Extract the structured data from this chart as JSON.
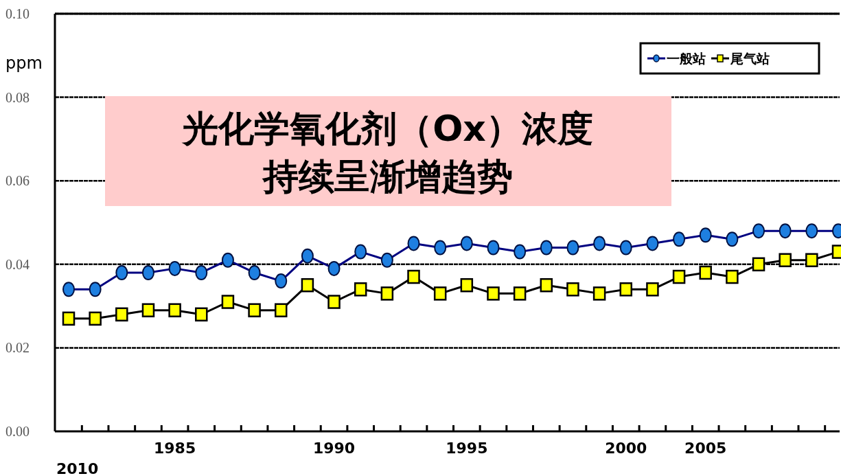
{
  "chart_data": {
    "type": "line",
    "title": "光化学氧化剂（Ox）浓度",
    "subtitle": "持续呈渐增趋势",
    "ylabel": "ppm",
    "categories": [
      null,
      null,
      null,
      null,
      "1985",
      null,
      null,
      null,
      null,
      null,
      "1990",
      null,
      null,
      null,
      null,
      "1995",
      null,
      null,
      null,
      null,
      null,
      "2000",
      null,
      null,
      "2005",
      null,
      null,
      null,
      null,
      null
    ],
    "series": [
      {
        "name": "一般站",
        "color": "#1e7fe0",
        "marker": "circle",
        "values": [
          0.034,
          0.034,
          0.038,
          0.038,
          0.039,
          0.038,
          0.041,
          0.038,
          0.036,
          0.042,
          0.039,
          0.043,
          0.041,
          0.045,
          0.044,
          0.045,
          0.044,
          0.043,
          0.044,
          0.044,
          0.045,
          0.044,
          0.045,
          0.046,
          0.047,
          0.046,
          0.048,
          0.048,
          0.048,
          0.048
        ]
      },
      {
        "name": "尾气站",
        "color": "#ffff00",
        "marker": "square",
        "values": [
          0.027,
          0.027,
          0.028,
          0.029,
          0.029,
          0.028,
          0.031,
          0.029,
          0.029,
          0.035,
          0.031,
          0.034,
          0.033,
          0.037,
          0.033,
          0.035,
          0.033,
          0.033,
          0.035,
          0.034,
          0.033,
          0.034,
          0.034,
          0.037,
          0.038,
          0.037,
          0.04,
          0.041,
          0.041,
          0.043
        ]
      }
    ],
    "ylim": [
      0,
      0.1
    ],
    "yticks": [
      {
        "value": 0,
        "label": "0.00"
      },
      {
        "value": 0.02,
        "label": "0.02"
      },
      {
        "value": 0.04,
        "label": "0.04"
      },
      {
        "value": 0.06,
        "label": "0.06"
      },
      {
        "value": 0.08,
        "label": "0.08"
      },
      {
        "value": 0.1,
        "label": "0.10"
      }
    ],
    "grid": "y",
    "legend": "top right",
    "annotations": [
      "2010"
    ]
  }
}
